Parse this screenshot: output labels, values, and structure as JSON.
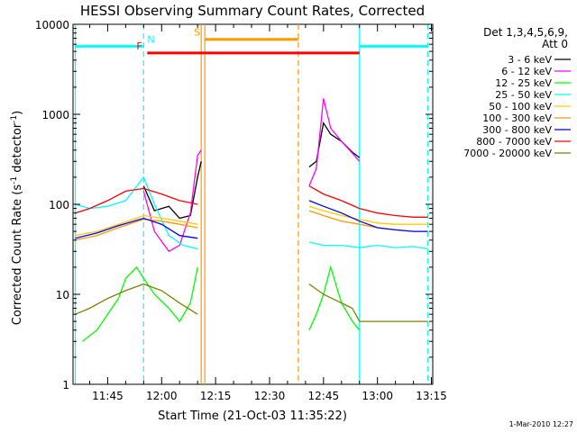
{
  "chart_data": {
    "type": "line",
    "title": "HESSI Observing Summary Count Rates, Corrected",
    "xlabel": "Start Time (21-Oct-03 11:35:22)",
    "ylabel": "Corrected Count Rate (s⁻¹ detector⁻¹)",
    "ylabel_main": "Corrected Count Rate (s",
    "ylabel_sup1": "-1",
    "ylabel_mid": " detector",
    "ylabel_sup2": "-1",
    "ylabel_end": ")",
    "y_scale": "log",
    "ylim": [
      1,
      10000
    ],
    "xlim": [
      "11:35:22",
      "13:15:22"
    ],
    "y_ticks": [
      "1",
      "10",
      "100",
      "1000",
      "10000"
    ],
    "x_ticks": [
      "11:45",
      "12:00",
      "12:15",
      "12:30",
      "12:45",
      "13:00",
      "13:15"
    ],
    "legend_header": [
      "Det 1,3,4,5,6,9,",
      "Att 0"
    ],
    "legend_position": "right",
    "series": [
      {
        "name": "3 - 6 keV",
        "color": "#000000",
        "x": [
          "11:55",
          "11:58",
          "12:02",
          "12:05",
          "12:08",
          "12:10",
          "12:11",
          "12:41",
          "12:43",
          "12:45",
          "12:47",
          "12:50",
          "12:53",
          "12:55"
        ],
        "values": [
          160,
          85,
          95,
          70,
          75,
          200,
          300,
          260,
          300,
          800,
          600,
          500,
          380,
          330
        ]
      },
      {
        "name": "6 - 12 keV",
        "color": "#ff00ff",
        "x": [
          "11:55",
          "11:58",
          "12:02",
          "12:05",
          "12:08",
          "12:10",
          "12:11",
          "12:41",
          "12:43",
          "12:45",
          "12:47",
          "12:50",
          "12:53",
          "12:55"
        ],
        "values": [
          140,
          50,
          30,
          35,
          80,
          350,
          400,
          160,
          250,
          1500,
          700,
          500,
          370,
          300
        ]
      },
      {
        "name": "12 - 25 keV",
        "color": "#00ff00",
        "x": [
          "11:38",
          "11:42",
          "11:45",
          "11:48",
          "11:50",
          "11:53",
          "11:55",
          "11:58",
          "12:02",
          "12:05",
          "12:08",
          "12:10",
          "12:41",
          "12:43",
          "12:45",
          "12:47",
          "12:50",
          "12:53",
          "12:55"
        ],
        "values": [
          3,
          4,
          6,
          9,
          15,
          20,
          15,
          10,
          7,
          5,
          8,
          20,
          4,
          6,
          10,
          20,
          8,
          5,
          4
        ]
      },
      {
        "name": "25 - 50 keV",
        "color": "#00ffff",
        "x": [
          "11:36",
          "11:40",
          "11:45",
          "11:50",
          "11:55",
          "11:58",
          "12:02",
          "12:06",
          "12:10",
          "12:41",
          "12:45",
          "12:50",
          "12:55",
          "13:00",
          "13:05",
          "13:10",
          "13:14"
        ],
        "values": [
          100,
          90,
          95,
          110,
          200,
          100,
          45,
          35,
          32,
          38,
          35,
          35,
          33,
          35,
          33,
          34,
          32
        ]
      },
      {
        "name": "50 - 100 keV",
        "color": "#ffcc00",
        "x": [
          "11:36",
          "11:42",
          "11:48",
          "11:55",
          "12:00",
          "12:05",
          "12:10",
          "12:41",
          "12:45",
          "12:50",
          "12:55",
          "13:00",
          "13:05",
          "13:10",
          "13:14"
        ],
        "values": [
          45,
          50,
          60,
          75,
          70,
          65,
          60,
          95,
          85,
          75,
          68,
          62,
          60,
          60,
          60
        ]
      },
      {
        "name": "100 - 300 keV",
        "color": "#ff9900",
        "x": [
          "11:36",
          "11:42",
          "11:48",
          "11:55",
          "12:00",
          "12:05",
          "12:10",
          "12:41",
          "12:45",
          "12:50",
          "12:55",
          "13:00",
          "13:05",
          "13:10",
          "13:14"
        ],
        "values": [
          40,
          45,
          55,
          68,
          65,
          60,
          55,
          85,
          75,
          65,
          60,
          55,
          52,
          50,
          50
        ]
      },
      {
        "name": "300 - 800 keV",
        "color": "#0000ff",
        "x": [
          "11:36",
          "11:42",
          "11:48",
          "11:55",
          "12:00",
          "12:05",
          "12:10",
          "12:41",
          "12:45",
          "12:50",
          "12:55",
          "13:00",
          "13:05",
          "13:10",
          "13:14"
        ],
        "values": [
          42,
          48,
          58,
          70,
          60,
          45,
          42,
          110,
          95,
          80,
          65,
          55,
          52,
          50,
          50
        ]
      },
      {
        "name": "800 - 7000 keV",
        "color": "#ff0000",
        "x": [
          "11:36",
          "11:40",
          "11:45",
          "11:50",
          "11:55",
          "12:00",
          "12:05",
          "12:10",
          "12:41",
          "12:45",
          "12:50",
          "12:55",
          "13:00",
          "13:05",
          "13:10",
          "13:14"
        ],
        "values": [
          80,
          90,
          110,
          140,
          150,
          130,
          110,
          100,
          160,
          130,
          110,
          90,
          80,
          75,
          72,
          72
        ]
      },
      {
        "name": "7000 - 20000 keV",
        "color": "#808000",
        "x": [
          "11:36",
          "11:40",
          "11:45",
          "11:50",
          "11:55",
          "12:00",
          "12:05",
          "12:10",
          "12:41",
          "12:45",
          "12:50",
          "12:53",
          "12:55",
          "13:00",
          "13:05",
          "13:10",
          "13:14"
        ],
        "values": [
          6,
          7,
          9,
          11,
          13,
          11,
          8,
          6,
          13,
          10,
          8,
          7,
          5,
          5,
          5,
          5,
          5
        ]
      }
    ],
    "flag_bars": [
      {
        "label": "N",
        "color": "#00ffff",
        "segments": [
          [
            "11:36",
            "11:55"
          ],
          [
            "12:55",
            "13:14"
          ]
        ],
        "level": 5700
      },
      {
        "label": "F",
        "color": "#ff0000",
        "segments": [
          [
            "11:56",
            "12:55"
          ]
        ],
        "level": 4800
      },
      {
        "label": "S",
        "color": "#ff9900",
        "segments": [
          [
            "12:12",
            "12:38"
          ]
        ],
        "level": 6800
      }
    ],
    "vertical_markers": [
      {
        "x": "11:36",
        "color": "#00ffff",
        "style": "solid"
      },
      {
        "x": "11:55",
        "color": "#00ffff",
        "style": "dashed"
      },
      {
        "x": "12:11",
        "color": "#ff9900",
        "style": "solid"
      },
      {
        "x": "12:12",
        "color": "#ff9900",
        "style": "solid"
      },
      {
        "x": "12:38",
        "color": "#ff9900",
        "style": "dashed"
      },
      {
        "x": "12:55",
        "color": "#00ffff",
        "style": "solid"
      },
      {
        "x": "13:14",
        "color": "#00ffff",
        "style": "dashed"
      }
    ],
    "footer_date": "1-Mar-2010 12:27"
  }
}
